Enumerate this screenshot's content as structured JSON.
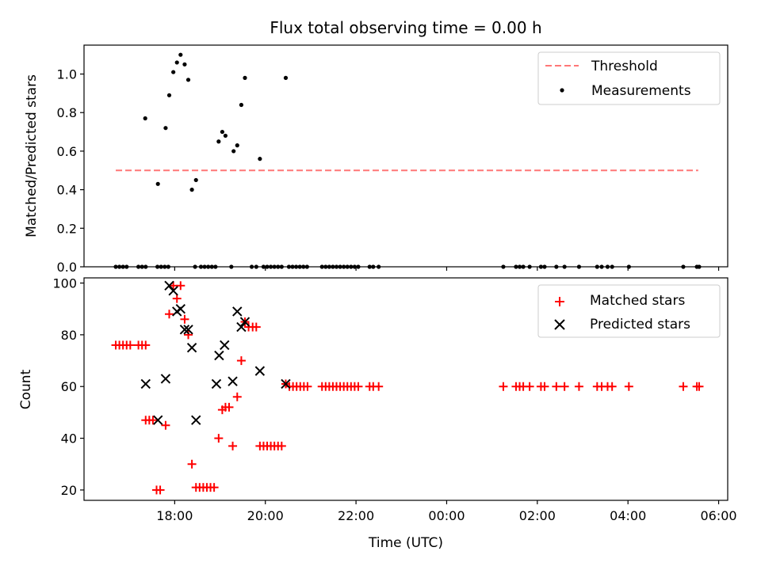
{
  "chart_data": [
    {
      "type": "scatter",
      "title": "Flux total observing time = 0.00 h",
      "xlabel": "",
      "ylabel": "Matched/Predicted stars",
      "x_unit": "hours since 00:00 UTC of first day (values > 24 are after midnight)",
      "xlim": [
        16.0,
        30.2
      ],
      "ylim": [
        0.0,
        1.15
      ],
      "y_ticks": [
        "0.0",
        "0.2",
        "0.4",
        "0.6",
        "0.8",
        "1.0"
      ],
      "y_tick_values": [
        0.0,
        0.2,
        0.4,
        0.6,
        0.8,
        1.0
      ],
      "x_ticks_visible": false,
      "legend_position": "top-right",
      "threshold": {
        "name": "Threshold",
        "y": 0.5,
        "x_range": [
          16.7,
          29.55
        ],
        "color": "#ff7777",
        "style": "dashed"
      },
      "series": [
        {
          "name": "Measurements",
          "marker": "dot",
          "color": "#000000",
          "points": [
            [
              17.35,
              0.77
            ],
            [
              17.63,
              0.43
            ],
            [
              17.8,
              0.72
            ],
            [
              17.88,
              0.89
            ],
            [
              17.97,
              1.01
            ],
            [
              18.05,
              1.06
            ],
            [
              18.13,
              1.1
            ],
            [
              18.22,
              1.05
            ],
            [
              18.3,
              0.97
            ],
            [
              18.38,
              0.4
            ],
            [
              18.47,
              0.45
            ],
            [
              18.97,
              0.65
            ],
            [
              19.05,
              0.7
            ],
            [
              19.12,
              0.68
            ],
            [
              19.3,
              0.6
            ],
            [
              19.38,
              0.63
            ],
            [
              19.47,
              0.84
            ],
            [
              19.55,
              0.98
            ],
            [
              19.88,
              0.56
            ],
            [
              20.45,
              0.98
            ],
            [
              16.7,
              0.0
            ],
            [
              16.78,
              0.0
            ],
            [
              16.86,
              0.0
            ],
            [
              16.94,
              0.0
            ],
            [
              17.2,
              0.0
            ],
            [
              17.28,
              0.0
            ],
            [
              17.36,
              0.0
            ],
            [
              17.62,
              0.0
            ],
            [
              17.7,
              0.0
            ],
            [
              17.78,
              0.0
            ],
            [
              17.86,
              0.0
            ],
            [
              18.45,
              0.0
            ],
            [
              18.58,
              0.0
            ],
            [
              18.66,
              0.0
            ],
            [
              18.74,
              0.0
            ],
            [
              18.82,
              0.0
            ],
            [
              18.9,
              0.0
            ],
            [
              19.25,
              0.0
            ],
            [
              19.7,
              0.0
            ],
            [
              19.8,
              0.0
            ],
            [
              19.96,
              0.0
            ],
            [
              20.04,
              0.0
            ],
            [
              20.12,
              0.0
            ],
            [
              20.2,
              0.0
            ],
            [
              20.28,
              0.0
            ],
            [
              20.36,
              0.0
            ],
            [
              20.52,
              0.0
            ],
            [
              20.6,
              0.0
            ],
            [
              20.68,
              0.0
            ],
            [
              20.76,
              0.0
            ],
            [
              20.84,
              0.0
            ],
            [
              20.92,
              0.0
            ],
            [
              21.25,
              0.0
            ],
            [
              21.33,
              0.0
            ],
            [
              21.41,
              0.0
            ],
            [
              21.49,
              0.0
            ],
            [
              21.57,
              0.0
            ],
            [
              21.65,
              0.0
            ],
            [
              21.73,
              0.0
            ],
            [
              21.81,
              0.0
            ],
            [
              21.89,
              0.0
            ],
            [
              21.97,
              0.0
            ],
            [
              22.05,
              0.0
            ],
            [
              22.3,
              0.0
            ],
            [
              22.38,
              0.0
            ],
            [
              22.5,
              0.0
            ],
            [
              25.25,
              0.0
            ],
            [
              25.53,
              0.0
            ],
            [
              25.61,
              0.0
            ],
            [
              25.69,
              0.0
            ],
            [
              25.83,
              0.0
            ],
            [
              26.08,
              0.0
            ],
            [
              26.16,
              0.0
            ],
            [
              26.42,
              0.0
            ],
            [
              26.6,
              0.0
            ],
            [
              26.92,
              0.0
            ],
            [
              27.32,
              0.0
            ],
            [
              27.42,
              0.0
            ],
            [
              27.55,
              0.0
            ],
            [
              27.65,
              0.0
            ],
            [
              28.02,
              0.0
            ],
            [
              29.22,
              0.0
            ],
            [
              29.52,
              0.0
            ],
            [
              29.57,
              0.0
            ]
          ]
        }
      ]
    },
    {
      "type": "scatter",
      "title": "",
      "xlabel": "Time (UTC)",
      "ylabel": "Count",
      "x_unit": "hours since 00:00 UTC of first day (values > 24 are after midnight)",
      "xlim": [
        16.0,
        30.2
      ],
      "ylim": [
        16.0,
        102.0
      ],
      "y_ticks": [
        "20",
        "40",
        "60",
        "80",
        "100"
      ],
      "y_tick_values": [
        20,
        40,
        60,
        80,
        100
      ],
      "x_ticks": [
        "18:00",
        "20:00",
        "22:00",
        "00:00",
        "02:00",
        "04:00",
        "06:00"
      ],
      "x_tick_values": [
        18,
        20,
        22,
        24,
        26,
        28,
        30
      ],
      "legend_position": "top-right",
      "series": [
        {
          "name": "Matched stars",
          "marker": "plus",
          "color": "#ff0000",
          "points": [
            [
              16.7,
              76
            ],
            [
              16.78,
              76
            ],
            [
              16.86,
              76
            ],
            [
              16.94,
              76
            ],
            [
              17.02,
              76
            ],
            [
              17.2,
              76
            ],
            [
              17.28,
              76
            ],
            [
              17.36,
              76
            ],
            [
              17.36,
              47
            ],
            [
              17.44,
              47
            ],
            [
              17.52,
              47
            ],
            [
              17.6,
              20
            ],
            [
              17.68,
              20
            ],
            [
              17.8,
              45
            ],
            [
              17.88,
              88
            ],
            [
              17.97,
              99
            ],
            [
              18.05,
              94
            ],
            [
              18.13,
              99
            ],
            [
              18.22,
              86
            ],
            [
              18.3,
              80
            ],
            [
              18.38,
              30
            ],
            [
              18.47,
              21
            ],
            [
              18.55,
              21
            ],
            [
              18.63,
              21
            ],
            [
              18.71,
              21
            ],
            [
              18.79,
              21
            ],
            [
              18.87,
              21
            ],
            [
              18.97,
              40
            ],
            [
              19.05,
              51
            ],
            [
              19.12,
              52
            ],
            [
              19.2,
              52
            ],
            [
              19.28,
              37
            ],
            [
              19.38,
              56
            ],
            [
              19.47,
              70
            ],
            [
              19.55,
              85
            ],
            [
              19.63,
              83
            ],
            [
              19.72,
              83
            ],
            [
              19.8,
              83
            ],
            [
              19.88,
              37
            ],
            [
              19.96,
              37
            ],
            [
              20.04,
              37
            ],
            [
              20.12,
              37
            ],
            [
              20.2,
              37
            ],
            [
              20.28,
              37
            ],
            [
              20.36,
              37
            ],
            [
              20.45,
              61
            ],
            [
              20.53,
              60
            ],
            [
              20.61,
              60
            ],
            [
              20.69,
              60
            ],
            [
              20.77,
              60
            ],
            [
              20.85,
              60
            ],
            [
              20.93,
              60
            ],
            [
              21.25,
              60
            ],
            [
              21.33,
              60
            ],
            [
              21.41,
              60
            ],
            [
              21.49,
              60
            ],
            [
              21.57,
              60
            ],
            [
              21.65,
              60
            ],
            [
              21.73,
              60
            ],
            [
              21.81,
              60
            ],
            [
              21.89,
              60
            ],
            [
              21.97,
              60
            ],
            [
              22.05,
              60
            ],
            [
              22.3,
              60
            ],
            [
              22.38,
              60
            ],
            [
              22.5,
              60
            ],
            [
              25.25,
              60
            ],
            [
              25.53,
              60
            ],
            [
              25.61,
              60
            ],
            [
              25.69,
              60
            ],
            [
              25.83,
              60
            ],
            [
              26.08,
              60
            ],
            [
              26.16,
              60
            ],
            [
              26.42,
              60
            ],
            [
              26.6,
              60
            ],
            [
              26.92,
              60
            ],
            [
              27.32,
              60
            ],
            [
              27.42,
              60
            ],
            [
              27.55,
              60
            ],
            [
              27.65,
              60
            ],
            [
              28.02,
              60
            ],
            [
              29.22,
              60
            ],
            [
              29.52,
              60
            ],
            [
              29.57,
              60
            ]
          ]
        },
        {
          "name": "Predicted stars",
          "marker": "x",
          "color": "#000000",
          "points": [
            [
              17.36,
              61
            ],
            [
              17.63,
              47
            ],
            [
              17.8,
              63
            ],
            [
              17.88,
              99
            ],
            [
              17.97,
              97
            ],
            [
              18.05,
              89
            ],
            [
              18.13,
              90
            ],
            [
              18.22,
              82
            ],
            [
              18.3,
              82
            ],
            [
              18.38,
              75
            ],
            [
              18.47,
              47
            ],
            [
              18.92,
              61
            ],
            [
              18.98,
              72
            ],
            [
              19.1,
              76
            ],
            [
              19.28,
              62
            ],
            [
              19.38,
              89
            ],
            [
              19.47,
              83
            ],
            [
              19.55,
              85
            ],
            [
              19.88,
              66
            ],
            [
              20.45,
              61
            ]
          ]
        }
      ]
    }
  ]
}
